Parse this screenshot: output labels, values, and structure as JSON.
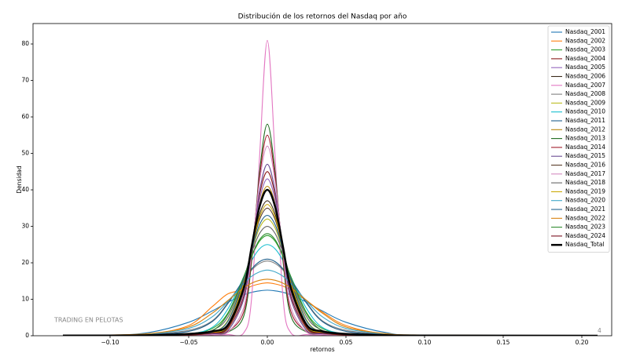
{
  "chart_data": {
    "type": "line",
    "title": "Distribución de los retornos del Nasdaq por año",
    "xlabel": "retornos",
    "ylabel": "Densidad",
    "annotations": [
      "TRADING EN PELOTAS",
      "4"
    ],
    "xlim": [
      -0.149,
      0.219
    ],
    "ylim": [
      0,
      85.6
    ],
    "xticks": [
      {
        "value": -0.1,
        "label": "−0.10"
      },
      {
        "value": -0.05,
        "label": "−0.05"
      },
      {
        "value": 0,
        "label": "0.00"
      },
      {
        "value": 0.05,
        "label": "0.05"
      },
      {
        "value": 0.1,
        "label": "0.10"
      },
      {
        "value": 0.15,
        "label": "0.15"
      },
      {
        "value": 0.2,
        "label": "0.20"
      }
    ],
    "yticks": [
      0,
      10,
      20,
      30,
      40,
      50,
      60,
      70,
      80
    ],
    "legend": "upper right",
    "x": [
      -0.13,
      -0.1,
      -0.075,
      -0.05,
      -0.035,
      -0.025,
      -0.015,
      -0.01,
      -0.005,
      0,
      0.005,
      0.01,
      0.015,
      0.025,
      0.035,
      0.05,
      0.075,
      0.1,
      0.21
    ],
    "series": [
      {
        "name": "Nasdaq_2001",
        "color": "#1f77b4",
        "values": [
          0,
          0.1,
          0.9,
          3.7,
          6.8,
          9.2,
          11.2,
          11.9,
          12.3,
          12.5,
          12.3,
          11.9,
          11.2,
          9.2,
          6.8,
          3.7,
          0.9,
          0.1,
          0
        ]
      },
      {
        "name": "Nasdaq_2002",
        "color": "#ff7f0e",
        "values": [
          0,
          0.05,
          0.4,
          2.8,
          8,
          11.5,
          12.5,
          13.6,
          14.2,
          14.5,
          14.2,
          13.6,
          12.5,
          9.6,
          6.5,
          2.8,
          0.4,
          0.05,
          0
        ]
      },
      {
        "name": "Nasdaq_2003",
        "color": "#2ca02c",
        "values": [
          0,
          0,
          0.05,
          0.4,
          2,
          6.3,
          16.2,
          21.7,
          25.9,
          27.5,
          25.9,
          21.7,
          16.2,
          6.3,
          2,
          0.4,
          0.05,
          0,
          0
        ]
      },
      {
        "name": "Nasdaq_2004",
        "color": "#8b1a1a",
        "values": [
          0,
          0,
          0,
          0.2,
          0.7,
          2,
          10.8,
          23.9,
          38.5,
          45,
          38.5,
          23.9,
          10.8,
          2,
          0.7,
          0.2,
          0,
          0,
          0
        ]
      },
      {
        "name": "Nasdaq_2005",
        "color": "#9467bd",
        "values": [
          0,
          0,
          0,
          0.2,
          0.7,
          2,
          11.7,
          24.1,
          37.2,
          43,
          37.2,
          24.1,
          11.7,
          2,
          0.7,
          0.2,
          0,
          0,
          0
        ]
      },
      {
        "name": "Nasdaq_2006",
        "color": "#3b2a1a",
        "values": [
          0,
          0,
          0,
          0.2,
          0.8,
          2.6,
          14.1,
          24.1,
          33.3,
          37,
          33.3,
          24.1,
          14.1,
          2.6,
          0.8,
          0.2,
          0,
          0,
          0
        ]
      },
      {
        "name": "Nasdaq_2007",
        "color": "#e377c2",
        "values": [
          0,
          0,
          0,
          0,
          0.1,
          0.3,
          0.8,
          10.3,
          48.6,
          81,
          48.6,
          10.3,
          0.8,
          0.3,
          0.1,
          0,
          0,
          0,
          0
        ]
      },
      {
        "name": "Nasdaq_2008",
        "color": "#7f7f7f",
        "values": [
          0.05,
          0.15,
          0.4,
          1.5,
          4.1,
          9.1,
          15.3,
          18,
          19.8,
          20.5,
          19.8,
          18,
          15.3,
          9.1,
          4.1,
          1.5,
          0.4,
          0.15,
          0
        ]
      },
      {
        "name": "Nasdaq_2009",
        "color": "#bcbd22",
        "values": [
          0,
          0,
          0.05,
          0.3,
          1,
          4.3,
          15.6,
          23.2,
          29.5,
          32,
          29.5,
          23.2,
          15.6,
          4.3,
          1,
          0.3,
          0.05,
          0,
          0
        ]
      },
      {
        "name": "Nasdaq_2010",
        "color": "#17becf",
        "values": [
          0,
          0,
          0.1,
          0.5,
          2.3,
          7.4,
          16.1,
          20.6,
          23.8,
          25,
          23.8,
          20.6,
          16.1,
          7.4,
          2.3,
          0.5,
          0.1,
          0,
          0
        ]
      },
      {
        "name": "Nasdaq_2011",
        "color": "#1f5f8b",
        "values": [
          0,
          0.1,
          0.3,
          1.2,
          3.9,
          8.9,
          15.4,
          18.3,
          20.3,
          21,
          20.3,
          18.3,
          15.4,
          8.9,
          3.9,
          1.2,
          0.3,
          0.1,
          0
        ]
      },
      {
        "name": "Nasdaq_2012",
        "color": "#b8860b",
        "values": [
          0,
          0,
          0,
          0.2,
          0.6,
          2,
          12.5,
          24.2,
          36,
          41,
          36,
          24.2,
          12.5,
          2,
          0.6,
          0.2,
          0,
          0,
          0
        ]
      },
      {
        "name": "Nasdaq_2013",
        "color": "#1e6b1e",
        "values": [
          0,
          0,
          0,
          0.1,
          0.3,
          1,
          5.4,
          20.3,
          44.7,
          58,
          44.7,
          20.3,
          5.4,
          1,
          0.3,
          0.1,
          0,
          0,
          0
        ]
      },
      {
        "name": "Nasdaq_2014",
        "color": "#a01c2c",
        "values": [
          0,
          0,
          0,
          0.1,
          0.3,
          1.2,
          6.6,
          21.4,
          43.4,
          55,
          43.4,
          21.4,
          6.6,
          1.2,
          0.3,
          0.1,
          0,
          0,
          0
        ]
      },
      {
        "name": "Nasdaq_2015",
        "color": "#6a4c93",
        "values": [
          0,
          0,
          0,
          0.1,
          0.5,
          1.5,
          10,
          23.6,
          39.5,
          47,
          39.5,
          23.6,
          10,
          1.5,
          0.5,
          0.1,
          0,
          0,
          0
        ]
      },
      {
        "name": "Nasdaq_2016",
        "color": "#5a3d2b",
        "values": [
          0,
          0,
          0,
          0.3,
          1,
          3.2,
          14.8,
          23.9,
          31.8,
          35,
          31.8,
          23.9,
          14.8,
          3.2,
          1,
          0.3,
          0,
          0,
          0
        ]
      },
      {
        "name": "Nasdaq_2017",
        "color": "#d48ac0",
        "values": [
          0,
          0,
          0,
          0.1,
          0.3,
          1,
          7.8,
          22.4,
          42.1,
          52,
          42.1,
          22.4,
          7.8,
          1,
          0.3,
          0.1,
          0,
          0,
          0
        ]
      },
      {
        "name": "Nasdaq_2018",
        "color": "#666666",
        "values": [
          0,
          0,
          0.1,
          0.4,
          1.5,
          5.2,
          15.9,
          22.7,
          28,
          30,
          28,
          22.7,
          15.9,
          5.2,
          1.5,
          0.4,
          0.1,
          0,
          0
        ]
      },
      {
        "name": "Nasdaq_2019",
        "color": "#c9a800",
        "values": [
          0,
          0,
          0,
          0.2,
          0.8,
          2.9,
          14.5,
          24,
          32.5,
          36,
          32.5,
          24,
          14.5,
          2.9,
          0.8,
          0.2,
          0,
          0,
          0
        ]
      },
      {
        "name": "Nasdaq_2020",
        "color": "#3fa7c9",
        "values": [
          0.05,
          0.2,
          0.5,
          2,
          5.2,
          9.5,
          14.3,
          16.3,
          17.5,
          18,
          17.5,
          16.3,
          14.3,
          9.5,
          5.2,
          2,
          0.5,
          0.2,
          0
        ]
      },
      {
        "name": "Nasdaq_2021",
        "color": "#23648f",
        "values": [
          0,
          0,
          0,
          0.3,
          1,
          4,
          15.3,
          23.5,
          30.4,
          33,
          30.4,
          23.5,
          15.3,
          4,
          1,
          0.3,
          0,
          0,
          0
        ]
      },
      {
        "name": "Nasdaq_2022",
        "color": "#d9820f",
        "values": [
          0.05,
          0.2,
          0.6,
          2.4,
          6.2,
          9.7,
          13.1,
          14.4,
          15.2,
          15.5,
          15.2,
          14.4,
          13.1,
          9.7,
          6.2,
          2.4,
          0.6,
          0.2,
          0
        ]
      },
      {
        "name": "Nasdaq_2023",
        "color": "#2e8b2e",
        "values": [
          0,
          0,
          0.1,
          0.3,
          1.4,
          6,
          16.1,
          21.9,
          26.3,
          28,
          26.3,
          21.9,
          16.1,
          6,
          1.4,
          0.3,
          0.1,
          0,
          0
        ]
      },
      {
        "name": "Nasdaq_2024",
        "color": "#7a1020",
        "values": [
          0,
          0,
          0,
          0.2,
          0.7,
          2.2,
          13,
          24.3,
          35.3,
          40,
          35.3,
          24.3,
          13,
          2.2,
          0.7,
          0.2,
          0,
          0,
          0
        ]
      },
      {
        "name": "Nasdaq_Total",
        "color": "#000000",
        "linewidth": 2.5,
        "values": [
          0.05,
          0.05,
          0.15,
          0.5,
          1.2,
          3,
          13,
          24.3,
          35.3,
          40,
          35.3,
          24.3,
          13,
          3,
          1.2,
          0.5,
          0.15,
          0.05,
          0
        ]
      }
    ]
  }
}
